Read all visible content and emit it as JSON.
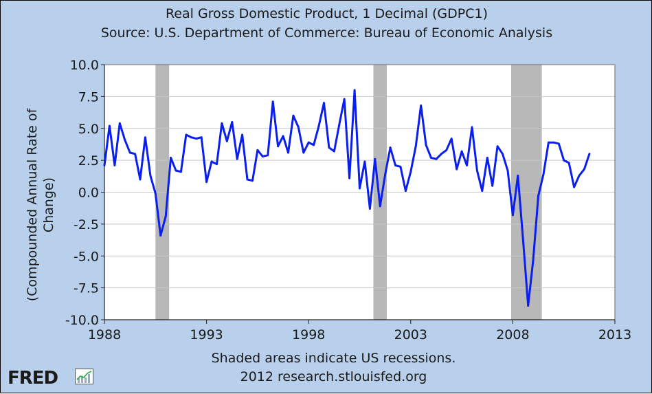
{
  "header": {
    "title": "Real Gross Domestic Product, 1 Decimal (GDPC1)",
    "source": "Source: U.S. Department of Commerce: Bureau of Economic Analysis"
  },
  "footer": {
    "note": "Shaded areas indicate US recessions.",
    "credit": "2012 research.stlouisfed.org",
    "logo": "FRED"
  },
  "colors": {
    "background": "#b8d0eb",
    "plot_background": "#ffffff",
    "series": "#0a1ef0",
    "recession": "#b8b8b8",
    "grid": "#c8c8c8"
  },
  "chart_data": {
    "type": "line",
    "title": "Real Gross Domestic Product, 1 Decimal (GDPC1)",
    "subtitle": "Source: U.S. Department of Commerce: Bureau of Economic Analysis",
    "xlabel": "",
    "ylabel": "(Compounded Annual Rate of Change)",
    "xlim": [
      1988,
      2013
    ],
    "ylim": [
      -10,
      10
    ],
    "x_ticks": [
      "1988",
      "1993",
      "1998",
      "2003",
      "2008",
      "2013"
    ],
    "y_ticks": [
      "10.0",
      "7.5",
      "5.0",
      "2.5",
      "0.0",
      "-2.5",
      "-5.0",
      "-7.5",
      "-10.0"
    ],
    "grid": "horizontal",
    "recessions": [
      [
        1990.5,
        1991.17
      ],
      [
        2001.17,
        2001.83
      ],
      [
        2007.92,
        2009.42
      ]
    ],
    "series": [
      {
        "name": "",
        "x": [
          1988.0,
          1988.25,
          1988.5,
          1988.75,
          1989.0,
          1989.25,
          1989.5,
          1989.75,
          1990.0,
          1990.25,
          1990.5,
          1990.75,
          1991.0,
          1991.25,
          1991.5,
          1991.75,
          1992.0,
          1992.25,
          1992.5,
          1992.75,
          1993.0,
          1993.25,
          1993.5,
          1993.75,
          1994.0,
          1994.25,
          1994.5,
          1994.75,
          1995.0,
          1995.25,
          1995.5,
          1995.75,
          1996.0,
          1996.25,
          1996.5,
          1996.75,
          1997.0,
          1997.25,
          1997.5,
          1997.75,
          1998.0,
          1998.25,
          1998.5,
          1998.75,
          1999.0,
          1999.25,
          1999.5,
          1999.75,
          2000.0,
          2000.25,
          2000.5,
          2000.75,
          2001.0,
          2001.25,
          2001.5,
          2001.75,
          2002.0,
          2002.25,
          2002.5,
          2002.75,
          2003.0,
          2003.25,
          2003.5,
          2003.75,
          2004.0,
          2004.25,
          2004.5,
          2004.75,
          2005.0,
          2005.25,
          2005.5,
          2005.75,
          2006.0,
          2006.25,
          2006.5,
          2006.75,
          2007.0,
          2007.25,
          2007.5,
          2007.75,
          2008.0,
          2008.25,
          2008.5,
          2008.75,
          2009.0,
          2009.25,
          2009.5,
          2009.75,
          2010.0,
          2010.25,
          2010.5,
          2010.75,
          2011.0,
          2011.25,
          2011.5,
          2011.75
        ],
        "y": [
          2.1,
          5.2,
          2.1,
          5.4,
          4.1,
          3.1,
          3.0,
          1.0,
          4.3,
          1.3,
          -0.1,
          -3.4,
          -1.9,
          2.7,
          1.7,
          1.6,
          4.5,
          4.3,
          4.2,
          4.3,
          0.8,
          2.4,
          2.2,
          5.4,
          4.0,
          5.5,
          2.6,
          4.5,
          1.0,
          0.9,
          3.3,
          2.8,
          2.9,
          7.1,
          3.6,
          4.4,
          3.1,
          6.0,
          5.1,
          3.1,
          3.9,
          3.7,
          5.2,
          7.0,
          3.5,
          3.2,
          5.3,
          7.3,
          1.1,
          8.0,
          0.3,
          2.4,
          -1.3,
          2.6,
          -1.1,
          1.4,
          3.5,
          2.1,
          2.0,
          0.1,
          1.6,
          3.6,
          6.8,
          3.7,
          2.7,
          2.6,
          3.0,
          3.3,
          4.2,
          1.8,
          3.2,
          2.1,
          5.1,
          1.7,
          0.1,
          2.7,
          0.5,
          3.6,
          3.0,
          1.7,
          -1.8,
          1.3,
          -3.7,
          -8.9,
          -5.3,
          -0.3,
          1.4,
          3.9,
          3.9,
          3.8,
          2.5,
          2.3,
          0.4,
          1.3,
          1.8,
          3.0
        ]
      }
    ]
  }
}
